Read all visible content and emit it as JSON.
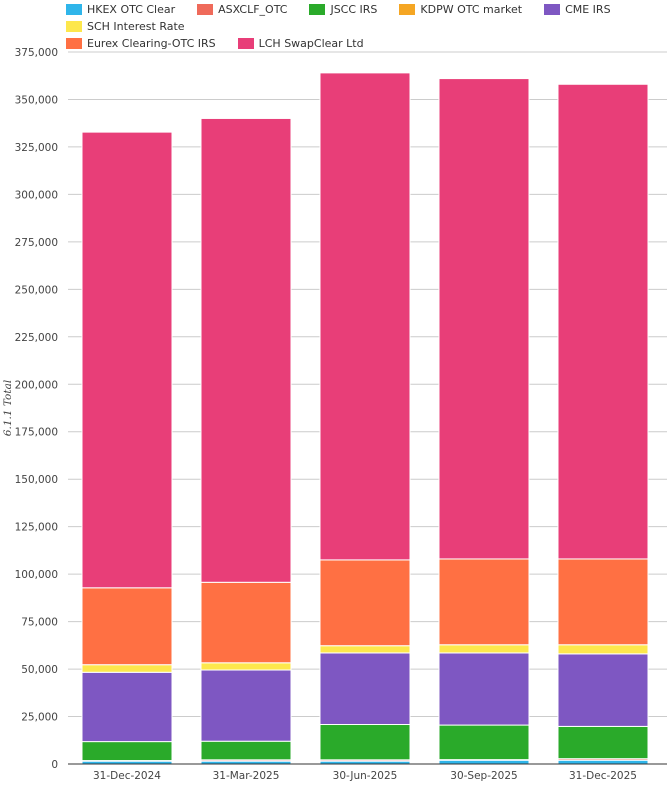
{
  "chart_data": {
    "type": "bar",
    "stacked": true,
    "title": "",
    "xlabel": "",
    "ylabel": "6.1.1 Total",
    "ylim": [
      0,
      375000
    ],
    "yticks": [
      0,
      25000,
      50000,
      75000,
      100000,
      125000,
      150000,
      175000,
      200000,
      225000,
      250000,
      275000,
      300000,
      325000,
      350000,
      375000
    ],
    "ytick_labels": [
      "0",
      "25,000",
      "50,000",
      "75,000",
      "100,000",
      "125,000",
      "150,000",
      "175,000",
      "200,000",
      "225,000",
      "250,000",
      "275,000",
      "300,000",
      "325,000",
      "350,000",
      "375,000"
    ],
    "grid": true,
    "legend_position": "top",
    "categories": [
      "31-Dec-2024",
      "31-Mar-2025",
      "30-Jun-2025",
      "30-Sep-2025",
      "31-Dec-2025"
    ],
    "series": [
      {
        "name": "HKEX OTC Clear",
        "color": "#2fb5ea",
        "values": [
          1500,
          1500,
          1500,
          2000,
          2000
        ]
      },
      {
        "name": "ASXCLF_OTC",
        "color": "#ef6a5a",
        "values": [
          300,
          700,
          700,
          300,
          800
        ]
      },
      {
        "name": "JSCC IRS",
        "color": "#2aaa2a",
        "values": [
          10000,
          9800,
          18600,
          18200,
          17000
        ]
      },
      {
        "name": "KDPW OTC market",
        "color": "#f5a623",
        "values": [
          0,
          0,
          0,
          0,
          0
        ]
      },
      {
        "name": "CME IRS",
        "color": "#7e57c2",
        "values": [
          36500,
          37500,
          37700,
          38000,
          38200
        ]
      },
      {
        "name": "SCH Interest Rate",
        "color": "#fde74c",
        "values": [
          4000,
          3800,
          3800,
          4300,
          4800
        ]
      },
      {
        "name": "Eurex Clearing-OTC IRS",
        "color": "#ff7043",
        "values": [
          40500,
          42400,
          45200,
          45200,
          45200
        ]
      },
      {
        "name": "LCH SwapClear Ltd",
        "color": "#e83e78",
        "values": [
          240000,
          244300,
          256500,
          253000,
          250000
        ]
      }
    ]
  }
}
